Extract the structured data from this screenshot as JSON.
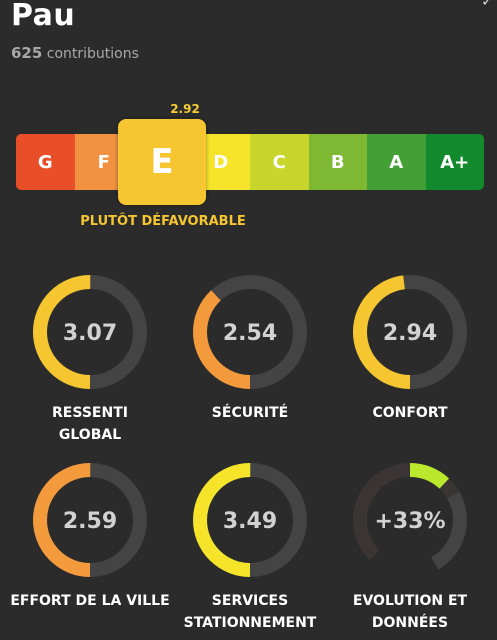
{
  "header": {
    "title": "Pau",
    "contributions_count": "625",
    "contributions_label": "contributions",
    "corner_glyph": "✓"
  },
  "scale": {
    "score": "2.92",
    "selected_grade": "E",
    "verdict": "PLUTÔT DÉFAVORABLE",
    "grades": [
      {
        "label": "G",
        "color": "#e84e27"
      },
      {
        "label": "F",
        "color": "#f09240"
      },
      {
        "label": "E",
        "color": "#f6c630"
      },
      {
        "label": "D",
        "color": "#f6e42b"
      },
      {
        "label": "C",
        "color": "#c8d62b"
      },
      {
        "label": "B",
        "color": "#7fb934"
      },
      {
        "label": "A",
        "color": "#43a034"
      },
      {
        "label": "A+",
        "color": "#138a2e"
      }
    ]
  },
  "gauges": [
    {
      "value": "3.07",
      "label": "RESSENTI GLOBAL",
      "fraction": 0.5,
      "color": "#f6c630"
    },
    {
      "value": "2.54",
      "label": "SÉCURITÉ",
      "fraction": 0.38,
      "color": "#f39a3c"
    },
    {
      "value": "2.94",
      "label": "CONFORT",
      "fraction": 0.48,
      "color": "#f6c630"
    },
    {
      "value": "2.59",
      "label": "EFFORT DE LA VILLE",
      "fraction": 0.5,
      "color": "#f39a3c"
    },
    {
      "value": "3.49",
      "label": "SERVICES STATIONNEMENT",
      "fraction": 0.5,
      "color": "#f6e42b"
    },
    {
      "value": "+33%",
      "label": "EVOLUTION ET DONNÉES",
      "fraction": 0.12,
      "color": "#b9e82d",
      "style": "evolution"
    }
  ]
}
